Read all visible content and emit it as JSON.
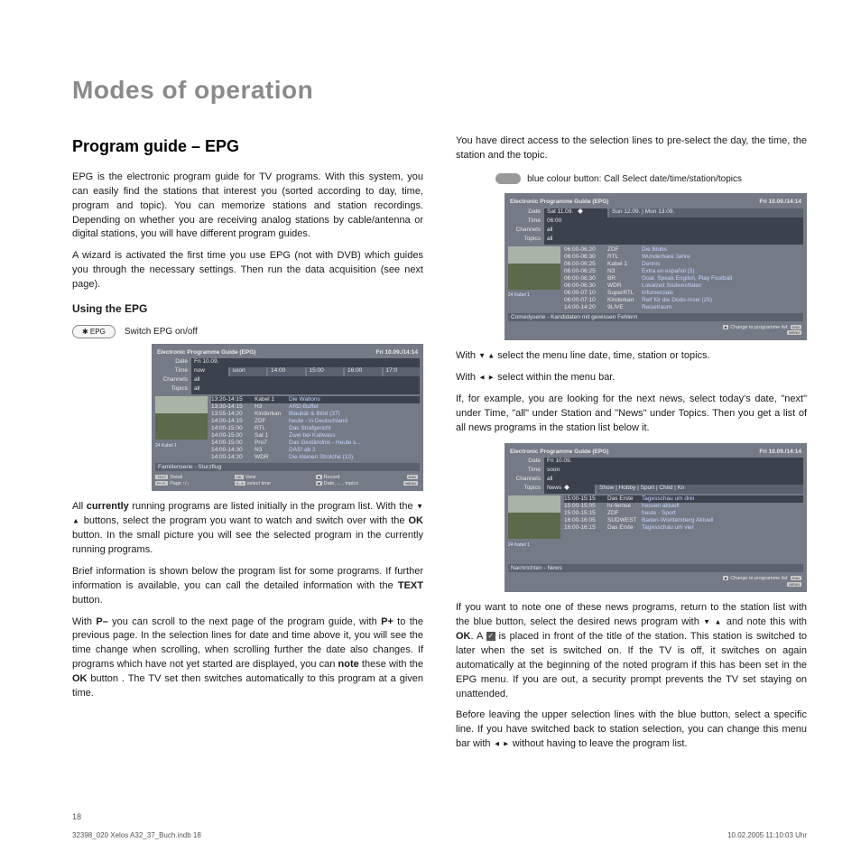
{
  "page": {
    "title": "Modes of operation",
    "subtitle": "Program guide – EPG",
    "pageNumber": "18",
    "footerLeft": "32398_020 Xelos A32_37_Buch.indb   18",
    "footerRight": "10.02.2005   11:10:03 Uhr"
  },
  "left": {
    "intro": "EPG is the electronic program guide for TV programs. With this system, you can easily find the stations that interest you (sorted according to day, time, program and topic). You can memorize stations and station recordings. Depending on whether you are receiving analog stations by cable/antenna or digital stations, you will have different program guides.",
    "wizard": "A wizard is activated the first time you use EPG (not with DVB) which guides you through the necessary settings. Then run the data acquisition (see next page).",
    "usingHeading": "Using the EPG",
    "epgBtn": "✱ EPG",
    "switchLabel": "Switch EPG on/off",
    "p_currently_1": "All ",
    "p_currently_bold": "currently",
    "p_currently_2": " running programs are listed initially in the program list. With the ",
    "p_currently_3": " buttons, select the program you want to watch and switch over with the ",
    "p_currently_4": " button. In the small picture you will see the selected program in the currently running programs.",
    "p_brief_1": "Brief information is shown below the program list for some programs. If further information is available, you can call the detailed information with the ",
    "p_brief_2": " button.",
    "p_scroll_1": "With ",
    "p_scroll_2": " you can scroll to the next page of the program guide, with ",
    "p_scroll_3": " to the previous page. In the selection lines for date and time above it, you will see the time change when scrolling, when scrolling further the date also changes.  If programs which have not yet started are displayed, you can ",
    "p_scroll_4": " these with the ",
    "p_scroll_5": " button . The TV set then switches automatically to this program at a given time.",
    "ok": "OK",
    "text": "TEXT",
    "pminus": "P–",
    "pplus": "P+",
    "note": "note"
  },
  "right": {
    "intro1": "You have direct access to the selection lines to pre-select the day, the time, the station and the topic.",
    "bluebtn": "blue colour button: Call Select date/time/station/topics",
    "p_select1": "With ",
    "p_select2": " select the menu line date, time, station or topics.",
    "p_select3": "With ",
    "p_select4": " select within the menu bar.",
    "p_example": "If, for example, you are looking for the next news, select today's date, \"next\" under Time, \"all\" under Station and \"News\" under Topics. Then you get a list of all news programs in the station list below it.",
    "p_note_1": "If you want to note one of these news programs, return to the station list with the blue button, select the desired news program with ",
    "p_note_2": " and note this with ",
    "p_note_3": ". A ",
    "p_note_4": " is placed in front of the title of the station. This station is switched to later when the set is switched on. If the TV is off, it switches on again automatically at the beginning of the noted program if this has been set in the EPG menu. If you are out, a security prompt prevents the TV set staying on unattended.",
    "p_leave_1": "Before leaving the upper selection lines with the blue button, select a specific line. If you have switched back to station selection, you can change this menu bar with ",
    "p_leave_2": " without having to leave the program list.",
    "ok": "OK"
  },
  "epg1": {
    "title": "Electronic Programme Guide (EPG)",
    "timestamp": "Fri 10.09./14:14",
    "labels": [
      "Date",
      "Time",
      "Channels",
      "Topics"
    ],
    "date_bar": [
      "Fri 10.09."
    ],
    "time_bar": [
      "now",
      "soon",
      "14:00",
      "15:00",
      "16:00",
      "17:0"
    ],
    "channels_bar": [
      "all"
    ],
    "topics_bar": [
      "all"
    ],
    "caption": "24 Kabel 1",
    "rows": [
      {
        "t": "13:20-14:15",
        "c": "Kabel 1",
        "p": "Die Waltons",
        "sel": true
      },
      {
        "t": "13:30-14:15",
        "c": "H3",
        "p": "ARD-Buffet"
      },
      {
        "t": "13:55-14:20",
        "c": "Kinderkan",
        "p": "Blaubär & Blöd (37)"
      },
      {
        "t": "14:00-14:15",
        "c": "ZDF",
        "p": "heute - in Deutschland"
      },
      {
        "t": "14:00-15:00",
        "c": "RTL",
        "p": "Das Strafgericht"
      },
      {
        "t": "14:00-15:00",
        "c": "Sat 1",
        "p": "Zwei bei Kallwass"
      },
      {
        "t": "14:00-15:00",
        "c": "Pro7",
        "p": "Das Geständnis - Heute s..."
      },
      {
        "t": "14:00-14:30",
        "c": "N3",
        "p": "DAS! ab 2"
      },
      {
        "t": "14:00-14:20",
        "c": "WDR",
        "p": "Die kleinen Strolche (10)"
      }
    ],
    "info": "Familienserie - Sturzflug",
    "foot": {
      "a": "Detail",
      "al": "TEXT",
      "b": "Page ↑/↓",
      "bl": "P+ P-",
      "c": "View",
      "cl": "OK",
      "d": "select time",
      "dl": "0...9",
      "e": "Record",
      "f": "Date, ... , topics",
      "g1": "END",
      "g2": "MENU"
    }
  },
  "epg2": {
    "title": "Electronic Programme Guide (EPG)",
    "timestamp": "Fri 10.09./14:14",
    "labels": [
      "Date",
      "Time",
      "Channels",
      "Topics"
    ],
    "date_bar": [
      "Sat 11.09.",
      "Sun 12.09. | Mon 13.09."
    ],
    "time_bar": [
      "06:00"
    ],
    "channels_bar": [
      "all"
    ],
    "topics_bar": [
      "all"
    ],
    "caption": "24 Kabel 1",
    "rows": [
      {
        "t": "06:00-06:20",
        "c": "ZDF",
        "p": "Die Blobs"
      },
      {
        "t": "06:00-06:30",
        "c": "RTL",
        "p": "Wunderbare Jahre"
      },
      {
        "t": "06:00-06:25",
        "c": "Kabel 1",
        "p": "Dennis"
      },
      {
        "t": "06:00-06:25",
        "c": "N3",
        "p": "Extra en español (5)"
      },
      {
        "t": "06:00-06:30",
        "c": "BR",
        "p": "Goal. Speak English, Play Football"
      },
      {
        "t": "06:00-06:30",
        "c": "WDR",
        "p": "Lokalzeit Südwestfalen"
      },
      {
        "t": "06:00-07:10",
        "c": "SuperRTL",
        "p": "Infomercials"
      },
      {
        "t": "06:00-07:10",
        "c": "Kinderkan",
        "p": "Reif für die Dodo-Insel (25)"
      },
      {
        "t": "14:00-14:20",
        "c": "9LIVE",
        "p": "Reisetraum"
      }
    ],
    "info": "Comedyserie - Kandidaten mit gewissen Fehlern",
    "foot_change": "Change to programme list",
    "foot_badges": [
      "END",
      "MENU"
    ]
  },
  "epg3": {
    "title": "Electronic Programme Guide (EPG)",
    "timestamp": "Fri 10.09./14:14",
    "labels": [
      "Date",
      "Time",
      "Channels",
      "Topics"
    ],
    "date_bar": [
      "Fri 10.09."
    ],
    "time_bar": [
      "soon"
    ],
    "channels_bar": [
      "all"
    ],
    "topics_bar": [
      "News",
      "Show | Hobby | Sport | Child | Kn"
    ],
    "caption": "24 Kabel 1",
    "rows": [
      {
        "t": "15:00-15:15",
        "c": "Das Erste",
        "p": "Tagesschau um drei",
        "sel": true
      },
      {
        "t": "15:00-15:05",
        "c": "hr-fernse",
        "p": "hessen aktuell"
      },
      {
        "t": "15:00-15:15",
        "c": "ZDF",
        "p": "heute - Sport"
      },
      {
        "t": "16:00-16:05",
        "c": "SÜDWEST",
        "p": "Baden-Württemberg Aktuell"
      },
      {
        "t": "16:00-16:15",
        "c": "Das Erste",
        "p": "Tagesschau um vier"
      }
    ],
    "info": "Nachrichten - News",
    "foot_change": "Change to programme list",
    "foot_badges": [
      "END",
      "MENU"
    ]
  }
}
